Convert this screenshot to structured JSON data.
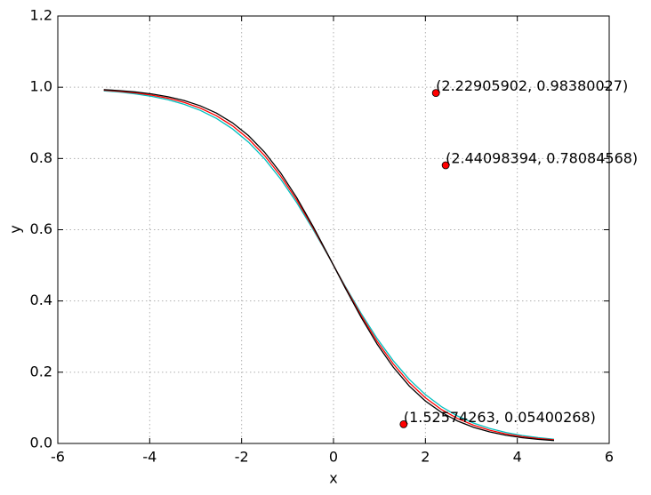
{
  "chart_data": {
    "type": "line",
    "xlabel": "x",
    "ylabel": "y",
    "x": [
      -5,
      -4.65,
      -4.3,
      -3.95,
      -3.6,
      -3.25,
      -2.9,
      -2.55,
      -2.2,
      -1.85,
      -1.5,
      -1.15,
      -0.8,
      -0.45,
      -0.1,
      0.25,
      0.6,
      0.95,
      1.3,
      1.65,
      2.0,
      2.35,
      2.7,
      3.05,
      3.4,
      3.75,
      4.1,
      4.45,
      4.8
    ],
    "series": [
      {
        "color": "#00bfbf",
        "values": [
          0.99,
          0.9863,
          0.9812,
          0.9743,
          0.9648,
          0.9521,
          0.9351,
          0.9126,
          0.8833,
          0.8458,
          0.799,
          0.7423,
          0.6761,
          0.6021,
          0.523,
          0.4427,
          0.3654,
          0.2944,
          0.2322,
          0.1798,
          0.1371,
          0.1032,
          0.077,
          0.057,
          0.042,
          0.0308,
          0.0225,
          0.0164,
          0.0119
        ]
      },
      {
        "color": "#ff0000",
        "values": [
          0.9917,
          0.9884,
          0.9839,
          0.9777,
          0.9691,
          0.9574,
          0.9415,
          0.9201,
          0.8918,
          0.855,
          0.8083,
          0.7509,
          0.6831,
          0.6064,
          0.524,
          0.4403,
          0.3599,
          0.2867,
          0.2232,
          0.1705,
          0.1282,
          0.0952,
          0.07,
          0.0511,
          0.0372,
          0.0269,
          0.0194,
          0.014,
          0.0101
        ]
      },
      {
        "color": "#000000",
        "values": [
          0.9933,
          0.9905,
          0.9866,
          0.9811,
          0.9734,
          0.9627,
          0.9479,
          0.9276,
          0.9002,
          0.8641,
          0.8176,
          0.7595,
          0.69,
          0.6106,
          0.525,
          0.4378,
          0.3543,
          0.2789,
          0.2142,
          0.1611,
          0.1192,
          0.0871,
          0.063,
          0.0452,
          0.0323,
          0.023,
          0.0163,
          0.0115,
          0.0082
        ]
      }
    ],
    "scatter": {
      "color": "#ff0000",
      "x": [
        2.22905902,
        2.44098394,
        1.52574263
      ],
      "y": [
        0.98380027,
        0.78084568,
        0.05400268
      ],
      "labels": [
        "(2.22905902, 0.98380027)",
        "(2.44098394, 0.78084568)",
        "(1.52574263, 0.05400268)"
      ]
    },
    "xlim": [
      -6,
      6
    ],
    "xticks": [
      -6,
      -4,
      -2,
      0,
      2,
      4,
      6
    ],
    "ylim": [
      0,
      1.2
    ],
    "yticks": [
      {
        "value": 0,
        "label": "0.0"
      },
      0.2,
      0.4,
      0.6,
      0.8,
      {
        "value": 1,
        "label": "1.0"
      },
      1.2
    ],
    "grid": true
  }
}
